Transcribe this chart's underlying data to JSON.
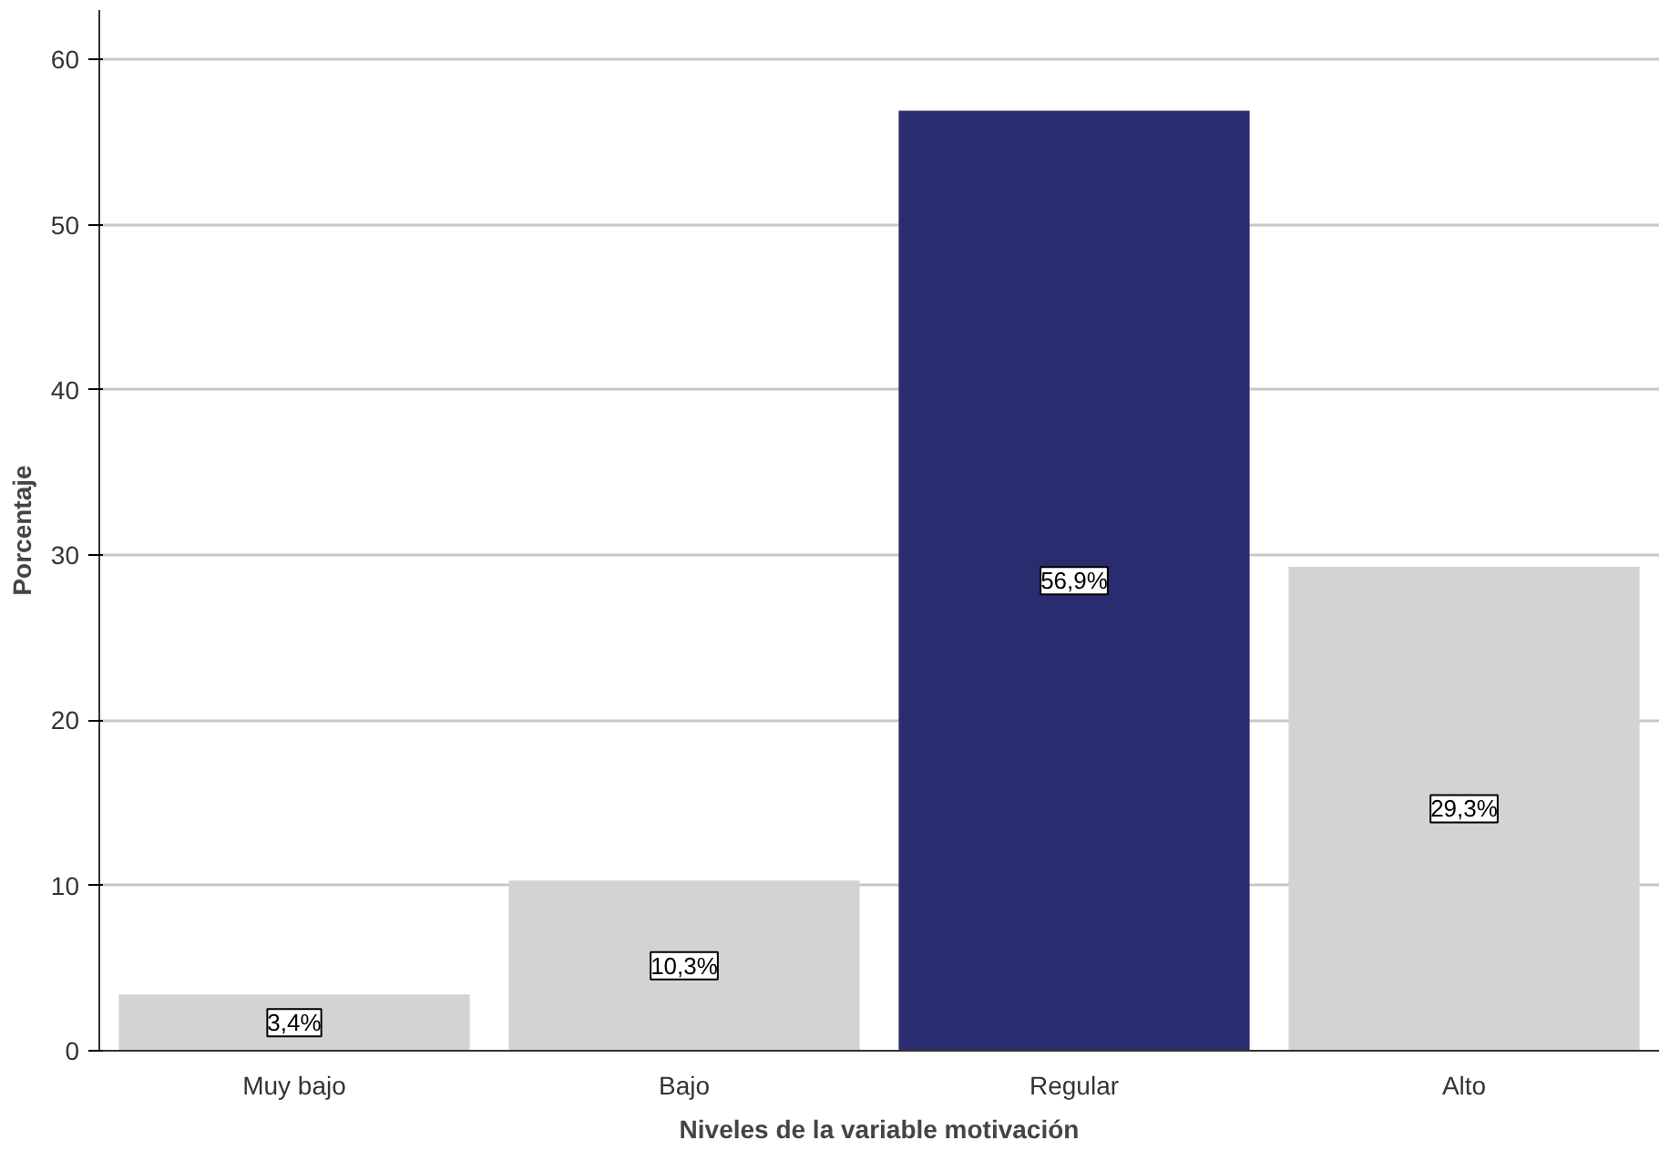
{
  "chart_data": {
    "type": "bar",
    "xlabel": "Niveles de la variable motivación",
    "ylabel": "Porcentaje",
    "categories": [
      "Muy bajo",
      "Bajo",
      "Regular",
      "Alto"
    ],
    "values": [
      3.4,
      10.3,
      56.9,
      29.3
    ],
    "colors": [
      "#d3d3d3",
      "#d3d3d3",
      "#292c6e",
      "#d3d3d3"
    ],
    "value_labels": [
      "3,4%",
      "10,3%",
      "56,9%",
      "29,3%"
    ],
    "ylim": [
      0,
      63
    ],
    "yticks": [
      0,
      10,
      20,
      30,
      40,
      50,
      60
    ],
    "grid": "y"
  }
}
